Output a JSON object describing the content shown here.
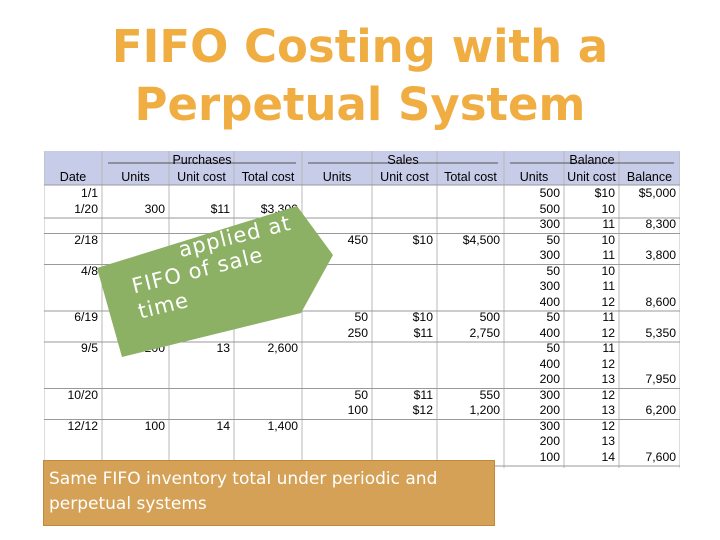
{
  "title": {
    "line1": "FIFO Costing with a",
    "line2": "Perpetual System"
  },
  "table": {
    "group_headers": {
      "purchases": "Purchases",
      "sales": "Sales",
      "balance": "Balance"
    },
    "columns": [
      "Date",
      "Units",
      "Unit cost",
      "Total cost",
      "Units",
      "Unit cost",
      "Total cost",
      "Units",
      "Unit cost",
      "Balance"
    ],
    "rows": [
      {
        "date": "1/1",
        "p_units": "",
        "p_cost": "",
        "p_total": "",
        "s_units": "",
        "s_cost": "",
        "s_total": "",
        "b_units": "500",
        "b_cost": "$10",
        "b_total": "$5,000"
      },
      {
        "date": "1/20",
        "p_units": "300",
        "p_cost": "$11",
        "p_total": "$3,300",
        "s_units": "",
        "s_cost": "",
        "s_total": "",
        "b_units": "500",
        "b_cost": "10",
        "b_total": ""
      },
      {
        "date": "",
        "p_units": "",
        "p_cost": "",
        "p_total": "",
        "s_units": "",
        "s_cost": "",
        "s_total": "",
        "b_units": "300",
        "b_cost": "11",
        "b_total": "8,300"
      },
      {
        "date": "2/18",
        "p_units": "",
        "p_cost": "",
        "p_total": "",
        "s_units": "450",
        "s_cost": "$10",
        "s_total": "$4,500",
        "b_units": "50",
        "b_cost": "10",
        "b_total": ""
      },
      {
        "date": "",
        "p_units": "",
        "p_cost": "",
        "p_total": "",
        "s_units": "",
        "s_cost": "",
        "s_total": "",
        "b_units": "300",
        "b_cost": "11",
        "b_total": "3,800"
      },
      {
        "date": "4/8",
        "p_units": "",
        "p_cost": "",
        "p_total": "",
        "s_units": "",
        "s_cost": "",
        "s_total": "",
        "b_units": "50",
        "b_cost": "10",
        "b_total": ""
      },
      {
        "date": "",
        "p_units": "",
        "p_cost": "",
        "p_total": "",
        "s_units": "",
        "s_cost": "",
        "s_total": "",
        "b_units": "300",
        "b_cost": "11",
        "b_total": ""
      },
      {
        "date": "",
        "p_units": "",
        "p_cost": "",
        "p_total": "",
        "s_units": "",
        "s_cost": "",
        "s_total": "",
        "b_units": "400",
        "b_cost": "12",
        "b_total": "8,600"
      },
      {
        "date": "6/19",
        "p_units": "",
        "p_cost": "",
        "p_total": "",
        "s_units": "50",
        "s_cost": "$10",
        "s_total": "500",
        "b_units": "50",
        "b_cost": "11",
        "b_total": ""
      },
      {
        "date": "",
        "p_units": "",
        "p_cost": "",
        "p_total": "",
        "s_units": "250",
        "s_cost": "$11",
        "s_total": "2,750",
        "b_units": "400",
        "b_cost": "12",
        "b_total": "5,350"
      },
      {
        "date": "9/5",
        "p_units": "200",
        "p_cost": "13",
        "p_total": "2,600",
        "s_units": "",
        "s_cost": "",
        "s_total": "",
        "b_units": "50",
        "b_cost": "11",
        "b_total": ""
      },
      {
        "date": "",
        "p_units": "",
        "p_cost": "",
        "p_total": "",
        "s_units": "",
        "s_cost": "",
        "s_total": "",
        "b_units": "400",
        "b_cost": "12",
        "b_total": ""
      },
      {
        "date": "",
        "p_units": "",
        "p_cost": "",
        "p_total": "",
        "s_units": "",
        "s_cost": "",
        "s_total": "",
        "b_units": "200",
        "b_cost": "13",
        "b_total": "7,950"
      },
      {
        "date": "10/20",
        "p_units": "",
        "p_cost": "",
        "p_total": "",
        "s_units": "50",
        "s_cost": "$11",
        "s_total": "550",
        "b_units": "300",
        "b_cost": "12",
        "b_total": ""
      },
      {
        "date": "",
        "p_units": "",
        "p_cost": "",
        "p_total": "",
        "s_units": "100",
        "s_cost": "$12",
        "s_total": "1,200",
        "b_units": "200",
        "b_cost": "13",
        "b_total": "6,200"
      },
      {
        "date": "12/12",
        "p_units": "100",
        "p_cost": "14",
        "p_total": "1,400",
        "s_units": "",
        "s_cost": "",
        "s_total": "",
        "b_units": "300",
        "b_cost": "12",
        "b_total": ""
      },
      {
        "date": "",
        "p_units": "",
        "p_cost": "",
        "p_total": "",
        "s_units": "",
        "s_cost": "",
        "s_total": "",
        "b_units": "200",
        "b_cost": "13",
        "b_total": ""
      },
      {
        "date": "",
        "p_units": "",
        "p_cost": "",
        "p_total": "",
        "s_units": "",
        "s_cost": "",
        "s_total": "",
        "b_units": "100",
        "b_cost": "14",
        "b_total": "7,600"
      }
    ]
  },
  "callout": {
    "line1": "applied at",
    "line2": "FIFO",
    "line3": "of sale",
    "line4": "time"
  },
  "note": {
    "text": "Same FIFO inventory total under periodic and perpetual systems"
  },
  "colors": {
    "title": "#f0ad42",
    "header_fill": "#c7cce8",
    "callout_fill": "#8cb064",
    "note_fill": "#d4a156"
  }
}
